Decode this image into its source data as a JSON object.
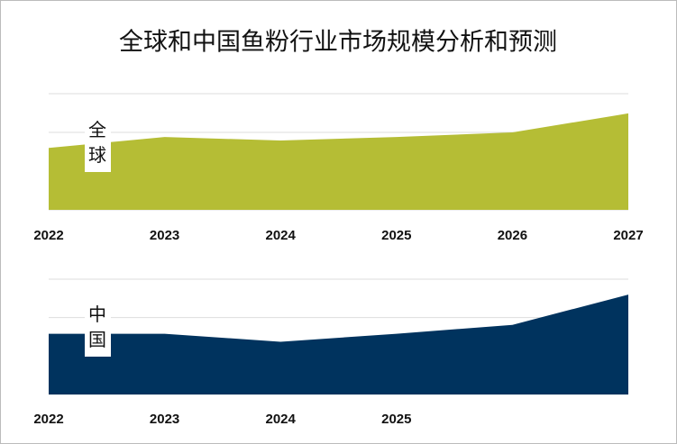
{
  "title": "全球和中国鱼粉行业市场规模分析和预测",
  "chart_data": [
    {
      "type": "area",
      "annotation": "全球",
      "color": "#b5bd35",
      "categories": [
        "2022",
        "2023",
        "2024",
        "2025",
        "2026",
        "2027"
      ],
      "values": [
        1.6,
        1.88,
        1.79,
        1.88,
        2.0,
        2.49
      ],
      "ylim": [
        0,
        3
      ],
      "yticks": [
        0,
        1,
        2,
        3
      ],
      "grid": true
    },
    {
      "type": "area",
      "annotation": "中国",
      "color": "#00335e",
      "categories": [
        "2022",
        "2023",
        "2024",
        "2025",
        null,
        null
      ],
      "values": [
        1.58,
        1.58,
        1.37,
        1.58,
        1.81,
        2.6
      ],
      "ylim": [
        0,
        3
      ],
      "yticks": [
        0,
        1,
        2,
        3
      ],
      "grid": true
    }
  ]
}
